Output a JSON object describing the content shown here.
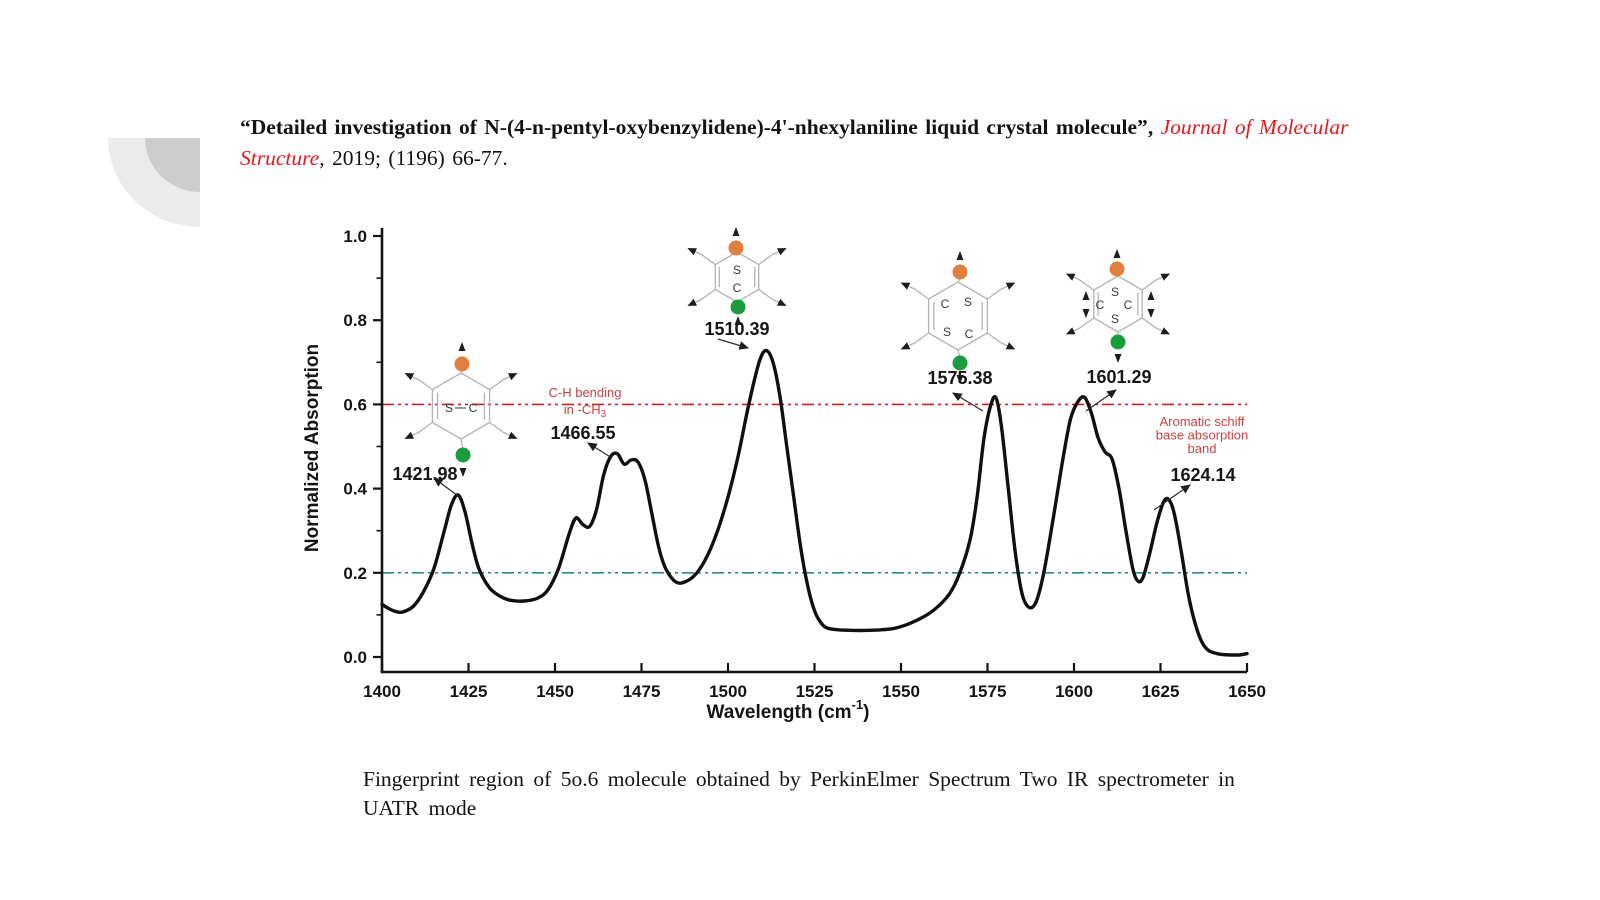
{
  "slide": {
    "title": {
      "quoted_bold": "“Detailed investigation of N-(4-n-pentyl-oxybenzylidene)-4'-nhexylaniline liquid crystal molecule”",
      "separator": ", ",
      "journal_italic": "Journal of Molecular Structure",
      "suffix": ", 2019; (1196) 66-77."
    },
    "caption": "Fingerprint region of 5o.6 molecule obtained by PerkinElmer Spectrum Two IR spectrometer in UATR mode"
  },
  "chart_data": {
    "type": "line",
    "title": "",
    "ylabel": "Normalized Absorption",
    "xlabel_parts": {
      "pre": "Wavelength (cm",
      "sup": "-1",
      "post": ")"
    },
    "xlim": [
      1400,
      1650
    ],
    "ylim": [
      0.0,
      1.0
    ],
    "grid": false,
    "x_ticks": [
      "1400",
      "1425",
      "1450",
      "1475",
      "1500",
      "1525",
      "1550",
      "1575",
      "1600",
      "1625",
      "1650"
    ],
    "y_ticks": [
      "0.0",
      "0.2",
      "0.4",
      "0.6",
      "0.8",
      "1.0"
    ],
    "reference_lines": [
      {
        "y": 0.6,
        "color": "#cc2222",
        "style": "dash-dot-dot"
      },
      {
        "y": 0.2,
        "color": "#2f8b8b",
        "style": "dash-dot-dot"
      }
    ],
    "peaks": [
      {
        "x": 1421.98,
        "y": 0.385,
        "label": "1421.98"
      },
      {
        "x": 1466.55,
        "y": 0.483,
        "label": "1466.55"
      },
      {
        "x": 1510.39,
        "y": 0.728,
        "label": "1510.39"
      },
      {
        "x": 1575.38,
        "y": 0.615,
        "label": "1575.38"
      },
      {
        "x": 1601.29,
        "y": 0.617,
        "label": "1601.29"
      },
      {
        "x": 1624.14,
        "y": 0.373,
        "label": "1624.14"
      }
    ],
    "annotations": [
      {
        "line1": "C-H bending",
        "line2_pre": "in -CH",
        "line2_sub": "3",
        "color": "#cd4040"
      },
      {
        "line1": "Aromatic schiff",
        "line2": "base absorption",
        "line3": "band",
        "color": "#cd4040"
      }
    ],
    "molecules": [
      {
        "peak": "1421.98",
        "atoms": [
          "S",
          "C"
        ]
      },
      {
        "peak": "1510.39",
        "atoms": [
          "S",
          "C"
        ]
      },
      {
        "peak": "1575.38",
        "atoms": [
          "C",
          "S",
          "S",
          "C"
        ]
      },
      {
        "peak": "1601.29",
        "atoms": [
          "S",
          "C",
          "C",
          "S"
        ]
      }
    ],
    "colors": {
      "curve": "#101010",
      "accent_orange": "#e07f3e",
      "accent_green": "#1a9c3f"
    },
    "series": [
      {
        "name": "IR absorption spectrum",
        "points": [
          [
            1400,
            0.125
          ],
          [
            1402,
            0.115
          ],
          [
            1404,
            0.108
          ],
          [
            1406,
            0.107
          ],
          [
            1409,
            0.12
          ],
          [
            1412,
            0.155
          ],
          [
            1415,
            0.21
          ],
          [
            1418,
            0.3
          ],
          [
            1420,
            0.36
          ],
          [
            1422,
            0.385
          ],
          [
            1424,
            0.345
          ],
          [
            1426,
            0.27
          ],
          [
            1428,
            0.21
          ],
          [
            1431,
            0.165
          ],
          [
            1434,
            0.145
          ],
          [
            1437,
            0.135
          ],
          [
            1441,
            0.133
          ],
          [
            1445,
            0.14
          ],
          [
            1448,
            0.16
          ],
          [
            1451,
            0.21
          ],
          [
            1454,
            0.29
          ],
          [
            1456,
            0.33
          ],
          [
            1458,
            0.315
          ],
          [
            1460,
            0.31
          ],
          [
            1462,
            0.35
          ],
          [
            1464,
            0.43
          ],
          [
            1466,
            0.475
          ],
          [
            1468,
            0.483
          ],
          [
            1470,
            0.458
          ],
          [
            1472,
            0.468
          ],
          [
            1474,
            0.463
          ],
          [
            1476,
            0.42
          ],
          [
            1478,
            0.34
          ],
          [
            1480,
            0.26
          ],
          [
            1482,
            0.21
          ],
          [
            1485,
            0.178
          ],
          [
            1488,
            0.18
          ],
          [
            1491,
            0.2
          ],
          [
            1494,
            0.24
          ],
          [
            1497,
            0.3
          ],
          [
            1500,
            0.38
          ],
          [
            1503,
            0.48
          ],
          [
            1506,
            0.6
          ],
          [
            1509,
            0.7
          ],
          [
            1511,
            0.728
          ],
          [
            1513,
            0.7
          ],
          [
            1515,
            0.62
          ],
          [
            1517,
            0.5
          ],
          [
            1519,
            0.38
          ],
          [
            1521,
            0.26
          ],
          [
            1523,
            0.17
          ],
          [
            1525,
            0.11
          ],
          [
            1527,
            0.08
          ],
          [
            1529,
            0.068
          ],
          [
            1533,
            0.064
          ],
          [
            1538,
            0.063
          ],
          [
            1543,
            0.064
          ],
          [
            1548,
            0.068
          ],
          [
            1552,
            0.078
          ],
          [
            1556,
            0.093
          ],
          [
            1560,
            0.115
          ],
          [
            1564,
            0.15
          ],
          [
            1567,
            0.2
          ],
          [
            1570,
            0.28
          ],
          [
            1572,
            0.38
          ],
          [
            1574,
            0.52
          ],
          [
            1576,
            0.6
          ],
          [
            1577.5,
            0.615
          ],
          [
            1579,
            0.55
          ],
          [
            1581,
            0.4
          ],
          [
            1583,
            0.25
          ],
          [
            1585,
            0.15
          ],
          [
            1587,
            0.118
          ],
          [
            1589,
            0.13
          ],
          [
            1591,
            0.19
          ],
          [
            1593,
            0.28
          ],
          [
            1595,
            0.38
          ],
          [
            1597,
            0.48
          ],
          [
            1599,
            0.565
          ],
          [
            1601,
            0.605
          ],
          [
            1603,
            0.617
          ],
          [
            1605,
            0.58
          ],
          [
            1607,
            0.52
          ],
          [
            1609,
            0.487
          ],
          [
            1611,
            0.47
          ],
          [
            1613,
            0.4
          ],
          [
            1615,
            0.3
          ],
          [
            1617,
            0.21
          ],
          [
            1618.5,
            0.18
          ],
          [
            1620,
            0.19
          ],
          [
            1622,
            0.25
          ],
          [
            1624,
            0.32
          ],
          [
            1626,
            0.37
          ],
          [
            1627.5,
            0.373
          ],
          [
            1629,
            0.34
          ],
          [
            1631,
            0.25
          ],
          [
            1633,
            0.15
          ],
          [
            1635,
            0.08
          ],
          [
            1637,
            0.035
          ],
          [
            1639,
            0.015
          ],
          [
            1642,
            0.007
          ],
          [
            1645,
            0.005
          ],
          [
            1648,
            0.005
          ],
          [
            1650,
            0.008
          ]
        ]
      }
    ]
  }
}
